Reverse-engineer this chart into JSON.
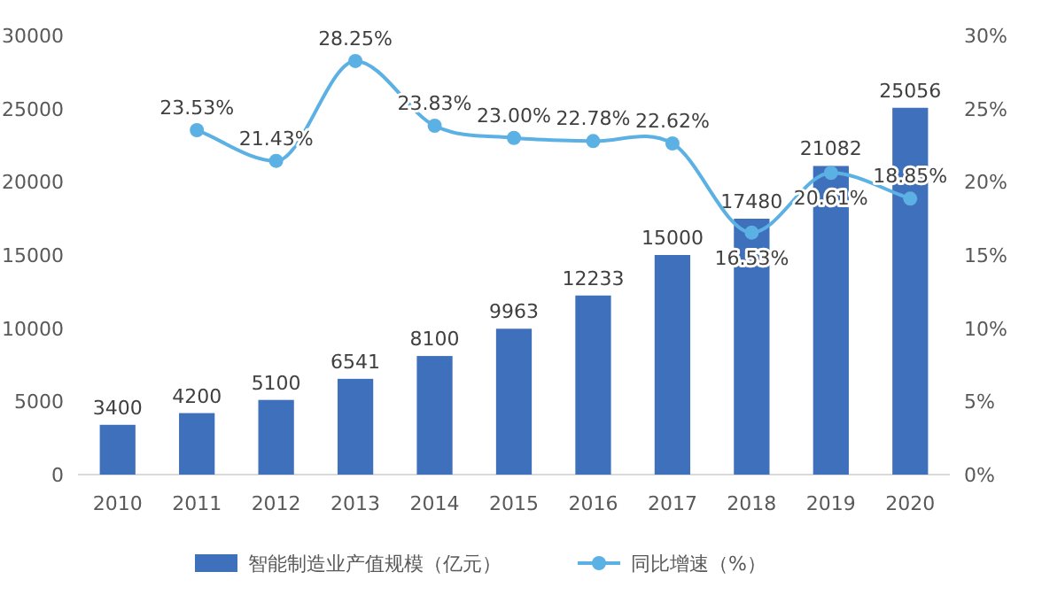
{
  "chart_data": {
    "type": "bar",
    "categories": [
      "2010",
      "2011",
      "2012",
      "2013",
      "2014",
      "2015",
      "2016",
      "2017",
      "2018",
      "2019",
      "2020"
    ],
    "series": [
      {
        "name": "智能制造业产值规模（亿元）",
        "color": "#3e70bb",
        "values": [
          3400,
          4200,
          5100,
          6541,
          8100,
          9963,
          12233,
          15000,
          17480,
          21082,
          25056
        ]
      },
      {
        "name": "同比增速（%）",
        "type": "line",
        "axis": "y2",
        "color": "#5bb0e4",
        "values": [
          null,
          23.53,
          21.43,
          28.25,
          23.83,
          23.0,
          22.78,
          22.62,
          16.53,
          20.61,
          18.85
        ],
        "value_labels": [
          null,
          "23.53%",
          "21.43%",
          "28.25%",
          "23.83%",
          "23.00%",
          "22.78%",
          "22.62%",
          "16.53%",
          "20.61%",
          "18.85%"
        ]
      }
    ],
    "ylim": [
      0,
      30000
    ],
    "yticks": [
      0,
      5000,
      10000,
      15000,
      20000,
      25000,
      30000
    ],
    "y2lim": [
      0,
      30
    ],
    "y2ticks": [
      {
        "value": 0,
        "label": "0%"
      },
      {
        "value": 5,
        "label": "5%"
      },
      {
        "value": 10,
        "label": "10%"
      },
      {
        "value": 15,
        "label": "15%"
      },
      {
        "value": 20,
        "label": "20%"
      },
      {
        "value": 25,
        "label": "25%"
      },
      {
        "value": 30,
        "label": "30%"
      }
    ],
    "data_labels": true,
    "legend": "bottom",
    "marker": "circle",
    "grid": false
  }
}
